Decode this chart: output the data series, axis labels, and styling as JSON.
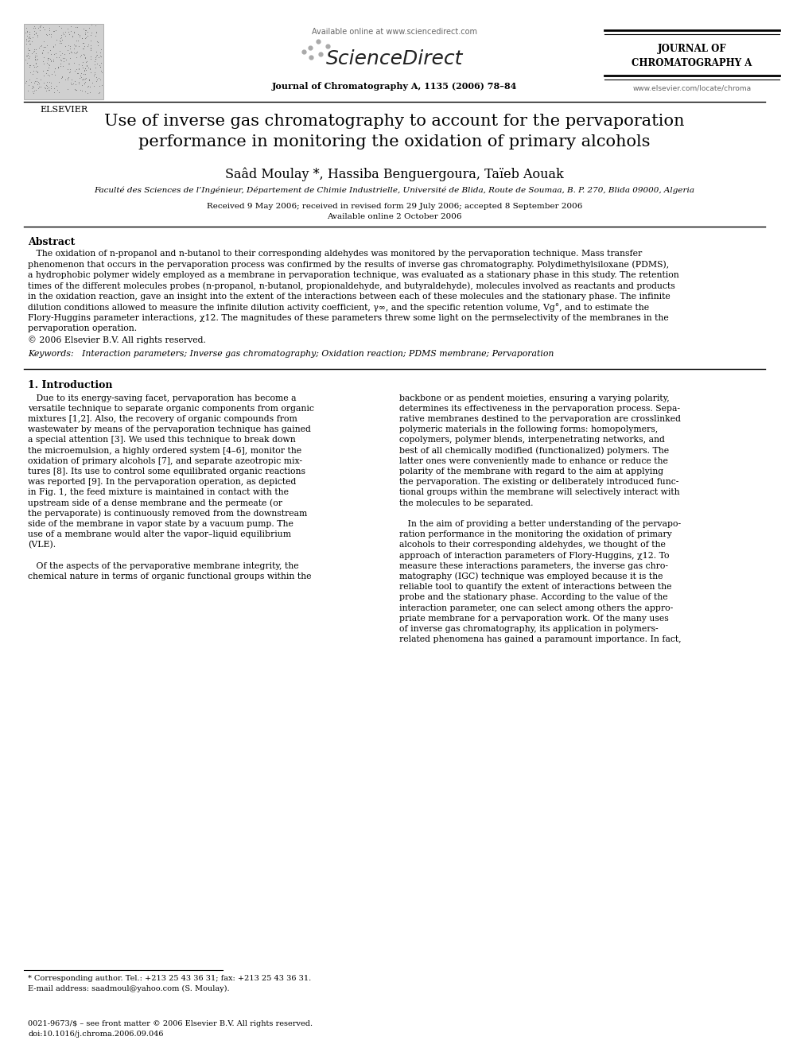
{
  "bg_color": "#ffffff",
  "page_width": 9.92,
  "page_height": 13.23,
  "dpi": 100,
  "header": {
    "elsevier_text": "ELSEVIER",
    "available_online": "Available online at www.sciencedirect.com",
    "sciencedirect": "ScienceDirect",
    "journal_name_right": "JOURNAL OF\nCHROMATOGRAPHY A",
    "journal_citation": "Journal of Chromatography A, 1135 (2006) 78–84",
    "website": "www.elsevier.com/locate/chroma"
  },
  "title": "Use of inverse gas chromatography to account for the pervaporation\nperformance in monitoring the oxidation of primary alcohols",
  "authors": "Saâd Moulay *, Hassiba Benguergoura, Taïeb Aouak",
  "affiliation": "Faculté des Sciences de l’Ingénieur, Département de Chimie Industrielle, Université de Blida, Route de Soumaa, B. P. 270, Blida 09000, Algeria",
  "received": "Received 9 May 2006; received in revised form 29 July 2006; accepted 8 September 2006",
  "available": "Available online 2 October 2006",
  "abstract_title": "Abstract",
  "abstract_text": "   The oxidation of n-propanol and n-butanol to their corresponding aldehydes was monitored by the pervaporation technique. Mass transfer\nphenomenon that occurs in the pervaporation process was confirmed by the results of inverse gas chromatography. Polydimethylsiloxane (PDMS),\na hydrophobic polymer widely employed as a membrane in pervaporation technique, was evaluated as a stationary phase in this study. The retention\ntimes of the different molecules probes (n-propanol, n-butanol, propionaldehyde, and butyraldehyde), molecules involved as reactants and products\nin the oxidation reaction, gave an insight into the extent of the interactions between each of these molecules and the stationary phase. The infinite\ndilution conditions allowed to measure the infinite dilution activity coefficient, γ∞, and the specific retention volume, Vg°, and to estimate the\nFlory-Huggins parameter interactions, χ12. The magnitudes of these parameters threw some light on the permselectivity of the membranes in the\npervaporation operation.\n© 2006 Elsevier B.V. All rights reserved.",
  "keywords": "Keywords:   Interaction parameters; Inverse gas chromatography; Oxidation reaction; PDMS membrane; Pervaporation",
  "section1_title": "1. Introduction",
  "section1_col1_lines": [
    "   Due to its energy-saving facet, pervaporation has become a",
    "versatile technique to separate organic components from organic",
    "mixtures [1,2]. Also, the recovery of organic compounds from",
    "wastewater by means of the pervaporation technique has gained",
    "a special attention [3]. We used this technique to break down",
    "the microemulsion, a highly ordered system [4–6], monitor the",
    "oxidation of primary alcohols [7], and separate azeotropic mix-",
    "tures [8]. Its use to control some equilibrated organic reactions",
    "was reported [9]. In the pervaporation operation, as depicted",
    "in Fig. 1, the feed mixture is maintained in contact with the",
    "upstream side of a dense membrane and the permeate (or",
    "the pervaporate) is continuously removed from the downstream",
    "side of the membrane in vapor state by a vacuum pump. The",
    "use of a membrane would alter the vapor–liquid equilibrium",
    "(VLE).",
    "",
    "   Of the aspects of the pervaporative membrane integrity, the",
    "chemical nature in terms of organic functional groups within the"
  ],
  "section1_col2_lines": [
    "backbone or as pendent moieties, ensuring a varying polarity,",
    "determines its effectiveness in the pervaporation process. Sepa-",
    "rative membranes destined to the pervaporation are crosslinked",
    "polymeric materials in the following forms: homopolymers,",
    "copolymers, polymer blends, interpenetrating networks, and",
    "best of all chemically modified (functionalized) polymers. The",
    "latter ones were conveniently made to enhance or reduce the",
    "polarity of the membrane with regard to the aim at applying",
    "the pervaporation. The existing or deliberately introduced func-",
    "tional groups within the membrane will selectively interact with",
    "the molecules to be separated.",
    "",
    "   In the aim of providing a better understanding of the pervapo-",
    "ration performance in the monitoring the oxidation of primary",
    "alcohols to their corresponding aldehydes, we thought of the",
    "approach of interaction parameters of Flory-Huggins, χ12. To",
    "measure these interactions parameters, the inverse gas chro-",
    "matography (IGC) technique was employed because it is the",
    "reliable tool to quantify the extent of interactions between the",
    "probe and the stationary phase. According to the value of the",
    "interaction parameter, one can select among others the appro-",
    "priate membrane for a pervaporation work. Of the many uses",
    "of inverse gas chromatography, its application in polymers-",
    "related phenomena has gained a paramount importance. In fact,"
  ],
  "footnote_star": "* Corresponding author. Tel.: +213 25 43 36 31; fax: +213 25 43 36 31.",
  "footnote_email": "E-mail address: saadmoul@yahoo.com (S. Moulay).",
  "bottom_text1": "0021-9673/$ – see front matter © 2006 Elsevier B.V. All rights reserved.",
  "bottom_text2": "doi:10.1016/j.chroma.2006.09.046"
}
